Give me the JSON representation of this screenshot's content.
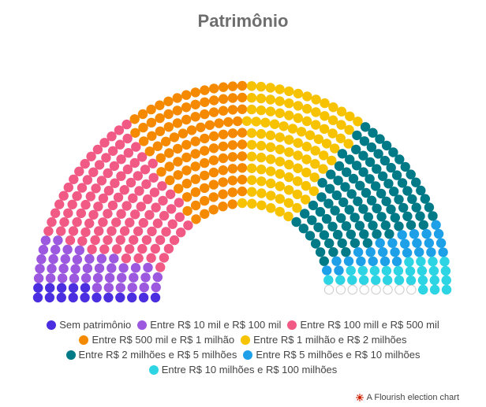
{
  "title": "Patrimônio",
  "credit": {
    "text": "A Flourish election chart",
    "icon": "flourish-logo-icon",
    "icon_color": "#cc2200"
  },
  "chart_data": {
    "type": "parliament",
    "title": "Patrimônio",
    "series": [
      {
        "name": "Sem patrimônio",
        "seats": 16,
        "color": "#4b2ee0"
      },
      {
        "name": "Entre R$ 10 mil e R$ 100 mil",
        "seats": 40,
        "color": "#9c59e0"
      },
      {
        "name": "Entre R$ 100 mill e R$ 500 mil",
        "seats": 113,
        "color": "#f25a86"
      },
      {
        "name": "Entre R$ 500 mil e R$ 1 milhão",
        "seats": 105,
        "color": "#f58a00"
      },
      {
        "name": "Entre R$ 1 milhão e R$ 2 milhões",
        "seats": 102,
        "color": "#f7c200"
      },
      {
        "name": "Entre R$ 2 milhões e R$ 5 milhões",
        "seats": 102,
        "color": "#007a87"
      },
      {
        "name": "Entre R$ 5 milhões e R$ 10 milhões",
        "seats": 27,
        "color": "#1ea0e8"
      },
      {
        "name": "Entre R$ 10 milhões e R$ 100 milhões",
        "seats": 27,
        "color": "#2dd4e4"
      },
      {
        "name": "",
        "seats": 8,
        "color": "#ffffff",
        "outline": "#cccccc"
      }
    ],
    "legend_rows": [
      [
        0,
        1,
        2
      ],
      [
        3,
        4
      ],
      [
        5,
        6
      ],
      [
        7
      ]
    ]
  }
}
